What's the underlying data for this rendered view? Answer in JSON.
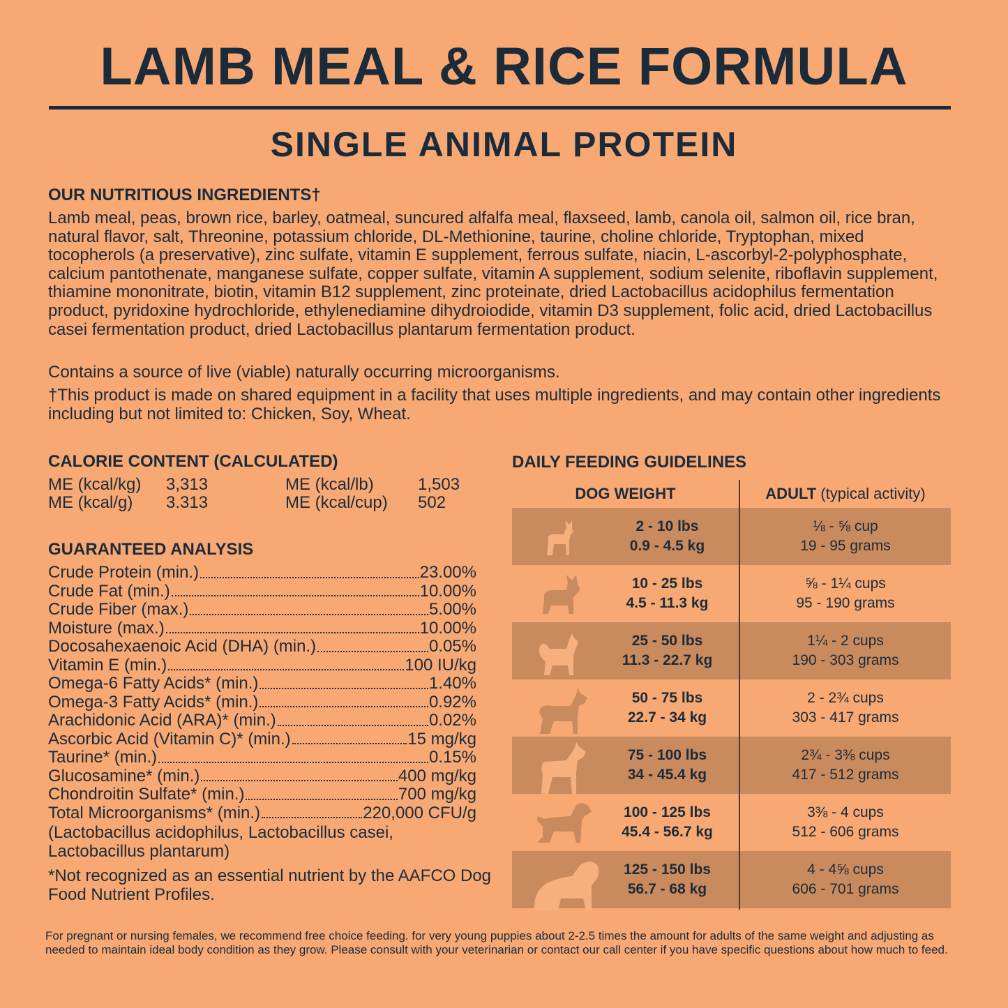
{
  "title": "LAMB MEAL & RICE FORMULA",
  "subtitle": "SINGLE ANIMAL PROTEIN",
  "ingredients": {
    "heading": "OUR NUTRITIOUS INGREDIENTS†",
    "text": "Lamb meal, peas, brown rice, barley, oatmeal, suncured alfalfa meal, flaxseed, lamb, canola oil, salmon oil, rice bran, natural flavor, salt, Threonine, potassium chloride, DL-Methionine, taurine, choline chloride, Tryptophan, mixed tocopherols (a preservative), zinc sulfate, vitamin E supplement, ferrous sulfate, niacin, L-ascorbyl-2-polyphosphate, calcium pantothenate, manganese sulfate, copper sulfate, vitamin A supplement, sodium selenite, riboflavin supplement, thiamine mononitrate, biotin, vitamin B12 supplement, zinc proteinate, dried Lactobacillus acidophilus fermentation product, pyridoxine hydrochloride, ethylenediamine dihydroiodide, vitamin D3 supplement, folic acid, dried Lactobacillus casei fermentation product, dried Lactobacillus plantarum fermentation product.",
    "live": "Contains a source of live (viable) naturally occurring microorganisms.",
    "shared": "†This product is made on shared equipment in a facility that uses multiple ingredients, and may contain other ingredients including but not limited to: Chicken, Soy, Wheat."
  },
  "calorie": {
    "heading": "CALORIE CONTENT (CALCULATED)",
    "items": [
      {
        "label": "ME (kcal/kg)",
        "value": "3,313"
      },
      {
        "label": "ME (kcal/lb)",
        "value": "1,503"
      },
      {
        "label": "ME (kcal/g)",
        "value": "3.313"
      },
      {
        "label": "ME (kcal/cup)",
        "value": "502"
      }
    ]
  },
  "analysis": {
    "heading": "GUARANTEED ANALYSIS",
    "rows": [
      {
        "label": "Crude Protein (min.)",
        "value": "23.00%"
      },
      {
        "label": "Crude Fat (min.)",
        "value": "10.00%"
      },
      {
        "label": "Crude Fiber (max.)",
        "value": "5.00%"
      },
      {
        "label": "Moisture (max.)",
        "value": "10.00%"
      },
      {
        "label": "Docosahexaenoic Acid (DHA) (min.)",
        "value": "0.05%"
      },
      {
        "label": "Vitamin E (min.)",
        "value": "100 IU/kg"
      },
      {
        "label": "Omega-6 Fatty Acids* (min.)",
        "value": "1.40%"
      },
      {
        "label": "Omega-3 Fatty Acids* (min.)",
        "value": "0.92%"
      },
      {
        "label": "Arachidonic Acid (ARA)* (min.)",
        "value": "0.02%"
      },
      {
        "label": "Ascorbic Acid (Vitamin C)* (min.)",
        "value": "15 mg/kg"
      },
      {
        "label": "Taurine* (min.)",
        "value": "0.15%"
      },
      {
        "label": "Glucosamine* (min.)",
        "value": "400 mg/kg"
      },
      {
        "label": "Chondroitin Sulfate* (min.)",
        "value": "700 mg/kg"
      },
      {
        "label": "Total Microorganisms* (min.)",
        "value": "220,000 CFU/g"
      }
    ],
    "note": "(Lactobacillus acidophilus, Lactobacillus casei, Lactobacillus plantarum)",
    "aafco": "*Not recognized as an essential nutrient by the AAFCO Dog Food Nutrient Profiles."
  },
  "feeding": {
    "heading": "DAILY FEEDING GUIDELINES",
    "col1": "DOG WEIGHT",
    "col2_bold": "ADULT",
    "col2_rest": " (typical activity)",
    "rows": [
      {
        "lbs": "2 - 10 lbs",
        "kg": "0.9 - 4.5 kg",
        "cups": "⅛ - ⅝ cup",
        "grams": "19 - 95 grams",
        "icon": "chihuahua-icon"
      },
      {
        "lbs": "10 - 25 lbs",
        "kg": "4.5 - 11.3 kg",
        "cups": "⅝ - 1¼ cups",
        "grams": "95 - 190 grams",
        "icon": "french-bulldog-icon"
      },
      {
        "lbs": "25 - 50 lbs",
        "kg": "11.3 - 22.7 kg",
        "cups": "1¼ - 2 cups",
        "grams": "190 - 303 grams",
        "icon": "spitz-icon"
      },
      {
        "lbs": "50 - 75 lbs",
        "kg": "22.7 - 34 kg",
        "cups": "2 - 2¾ cups",
        "grams": "303 - 417 grams",
        "icon": "pit-bull-icon"
      },
      {
        "lbs": "75 - 100 lbs",
        "kg": "34 - 45.4 kg",
        "cups": "2¾ - 3⅜ cups",
        "grams": "417 - 512 grams",
        "icon": "great-dane-icon"
      },
      {
        "lbs": "100 - 125 lbs",
        "kg": "45.4 - 56.7 kg",
        "cups": "3⅜ - 4 cups",
        "grams": "512 - 606 grams",
        "icon": "labrador-icon"
      },
      {
        "lbs": "125 - 150 lbs",
        "kg": "56.7 - 68 kg",
        "cups": "4 - 4⅝ cups",
        "grams": "606 - 701 grams",
        "icon": "newfoundland-icon"
      }
    ]
  },
  "footnote": "For pregnant or nursing females, we recommend free choice feeding. for very young puppies about 2-2.5 times the amount for adults of the same weight and adjusting as needed to maintain ideal body condition as they grow. Please consult with your veterinarian or contact our call center if you have specific questions about how much to feed.",
  "colors": {
    "background": "#F7A873",
    "band": "#C98A5E",
    "text": "#1C2B3A"
  }
}
